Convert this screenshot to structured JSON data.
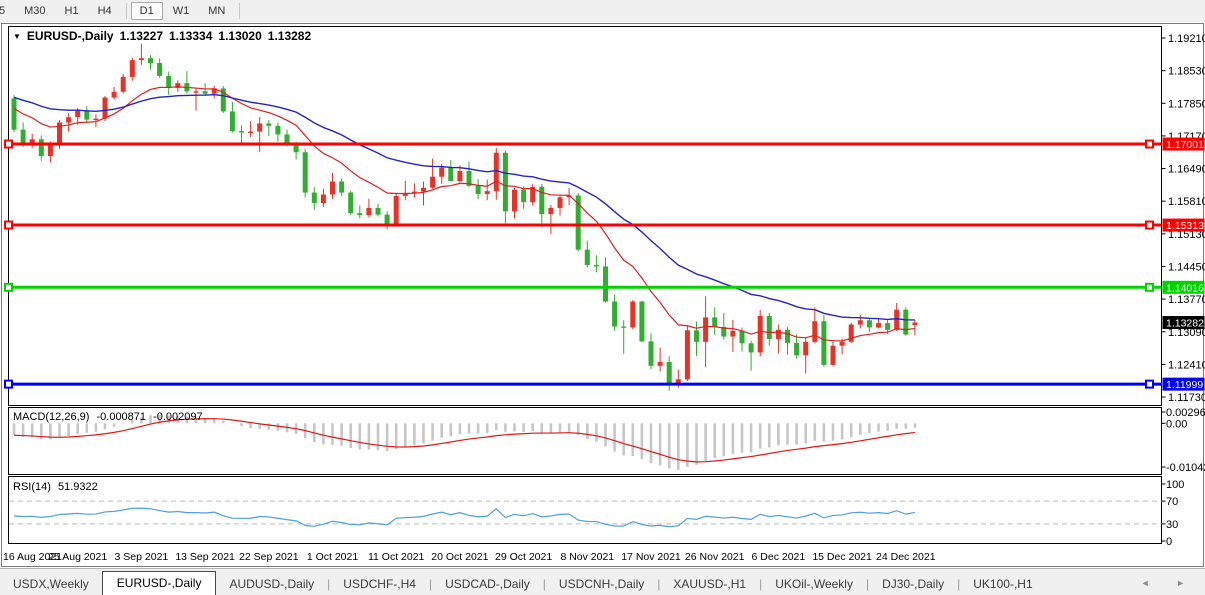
{
  "toolbar": {
    "timeframes": [
      {
        "label": "5",
        "active": false
      },
      {
        "label": "M30",
        "active": false
      },
      {
        "label": "H1",
        "active": false
      },
      {
        "label": "H4",
        "active": false,
        "separator_after": true
      },
      {
        "label": "D1",
        "active": true
      },
      {
        "label": "W1",
        "active": false
      },
      {
        "label": "MN",
        "active": false,
        "separator_after": true
      }
    ]
  },
  "chart_title": {
    "dropdown_icon": "chart-dropdown",
    "symbol": "EURUSD-,Daily",
    "open": "1.13227",
    "high": "1.13334",
    "low": "1.13020",
    "close": "1.13282"
  },
  "price_axis": {
    "ticks": [
      1.1921,
      1.1853,
      1.1785,
      1.1717,
      1.1649,
      1.1581,
      1.1513,
      1.1445,
      1.1377,
      1.1309,
      1.1241,
      1.1173
    ],
    "decimals": 5
  },
  "hlines": [
    {
      "price": 1.17001,
      "label": "1.17001",
      "color": "#FF0000",
      "width": 3
    },
    {
      "price": 1.15313,
      "label": "1.15313",
      "color": "#FF0000",
      "width": 3
    },
    {
      "price": 1.14016,
      "label": "1.14016",
      "color": "#00D300",
      "width": 3
    },
    {
      "price": 1.11999,
      "label": "1.11999",
      "color": "#0000FF",
      "width": 3
    }
  ],
  "current_price": {
    "value": 1.13282,
    "label": "1.13282",
    "bg": "#000000",
    "fg": "#ffffff"
  },
  "macd_panel": {
    "label": "MACD(12,26,9)",
    "value1": "-0.000871",
    "value2": "-0.002097",
    "axis_max_label": "0.002966",
    "axis_zero_label": "0.00",
    "axis_min_label": "-0.01042",
    "axis_max": 0.002966,
    "axis_min": -0.01042
  },
  "rsi_panel": {
    "label": "RSI(14)",
    "value": "51.9322",
    "axis_labels": [
      100,
      70,
      30,
      0
    ],
    "dashed_levels": [
      70,
      30
    ]
  },
  "date_axis": {
    "labels": [
      "16 Aug 2021",
      "25 Aug 2021",
      "3 Sep 2021",
      "13 Sep 2021",
      "22 Sep 2021",
      "1 Oct 2021",
      "11 Oct 2021",
      "20 Oct 2021",
      "29 Oct 2021",
      "8 Nov 2021",
      "17 Nov 2021",
      "26 Nov 2021",
      "6 Dec 2021",
      "15 Dec 2021",
      "24 Dec 2021"
    ]
  },
  "tabs": {
    "items": [
      {
        "label": "USDX,Weekly",
        "active": false
      },
      {
        "label": "EURUSD-,Daily",
        "active": true
      },
      {
        "label": "AUDUSD-,Daily",
        "active": false
      },
      {
        "label": "USDCHF-,H4",
        "active": false
      },
      {
        "label": "USDCAD-,Daily",
        "active": false
      },
      {
        "label": "USDCNH-,Daily",
        "active": false
      },
      {
        "label": "XAUUSD-,H1",
        "active": false
      },
      {
        "label": "UKOil-,Weekly",
        "active": false
      },
      {
        "label": "DJ30-,Daily",
        "active": false
      },
      {
        "label": "UK100-,H1",
        "active": false
      }
    ],
    "nav_left": "◄",
    "nav_right": "►"
  },
  "chart_data": {
    "type": "candlestick",
    "symbol": "EURUSD-",
    "timeframe": "Daily",
    "bull_color": "#E93226",
    "bear_color": "#2FAE2F",
    "candles": [
      [
        1.1795,
        1.1802,
        1.1725,
        1.173
      ],
      [
        1.173,
        1.1745,
        1.1694,
        1.1702
      ],
      [
        1.1702,
        1.1721,
        1.1692,
        1.171
      ],
      [
        1.171,
        1.1718,
        1.1665,
        1.1675
      ],
      [
        1.1675,
        1.1705,
        1.1662,
        1.1697
      ],
      [
        1.1697,
        1.175,
        1.169,
        1.1745
      ],
      [
        1.1745,
        1.1765,
        1.1727,
        1.1756
      ],
      [
        1.1756,
        1.1775,
        1.174,
        1.177
      ],
      [
        1.177,
        1.1779,
        1.1745,
        1.1751
      ],
      [
        1.1751,
        1.1762,
        1.1735,
        1.1753
      ],
      [
        1.1753,
        1.18,
        1.1748,
        1.1797
      ],
      [
        1.1797,
        1.1819,
        1.1793,
        1.1809
      ],
      [
        1.1809,
        1.1846,
        1.1805,
        1.184
      ],
      [
        1.184,
        1.188,
        1.1832,
        1.1875
      ],
      [
        1.1875,
        1.1909,
        1.1865,
        1.1879
      ],
      [
        1.1879,
        1.1885,
        1.1855,
        1.1869
      ],
      [
        1.1869,
        1.1878,
        1.1838,
        1.1842
      ],
      [
        1.1842,
        1.1851,
        1.1802,
        1.1817
      ],
      [
        1.1817,
        1.1833,
        1.1809,
        1.1827
      ],
      [
        1.1827,
        1.1852,
        1.1805,
        1.181
      ],
      [
        1.181,
        1.1818,
        1.177,
        1.181
      ],
      [
        1.181,
        1.1827,
        1.18,
        1.1805
      ],
      [
        1.1805,
        1.1822,
        1.1795,
        1.1816
      ],
      [
        1.1816,
        1.1821,
        1.1765,
        1.1768
      ],
      [
        1.1768,
        1.1788,
        1.1724,
        1.1727
      ],
      [
        1.1727,
        1.1739,
        1.17,
        1.1725
      ],
      [
        1.1725,
        1.1748,
        1.1715,
        1.1726
      ],
      [
        1.1726,
        1.1756,
        1.1684,
        1.1743
      ],
      [
        1.1743,
        1.175,
        1.1717,
        1.1738
      ],
      [
        1.1738,
        1.1745,
        1.1705,
        1.172
      ],
      [
        1.172,
        1.173,
        1.1695,
        1.17
      ],
      [
        1.17,
        1.1705,
        1.1668,
        1.1683
      ],
      [
        1.1683,
        1.169,
        1.1589,
        1.1599
      ],
      [
        1.1599,
        1.161,
        1.1563,
        1.1577
      ],
      [
        1.1577,
        1.1607,
        1.1569,
        1.1595
      ],
      [
        1.1595,
        1.164,
        1.1586,
        1.1622
      ],
      [
        1.1622,
        1.1628,
        1.1592,
        1.1599
      ],
      [
        1.1599,
        1.1602,
        1.1552,
        1.1556
      ],
      [
        1.1556,
        1.1572,
        1.1545,
        1.1552
      ],
      [
        1.1552,
        1.1586,
        1.1547,
        1.1567
      ],
      [
        1.1567,
        1.1576,
        1.1549,
        1.1553
      ],
      [
        1.1553,
        1.156,
        1.1522,
        1.1532
      ],
      [
        1.1532,
        1.1597,
        1.1529,
        1.1592
      ],
      [
        1.1592,
        1.1624,
        1.1583,
        1.1597
      ],
      [
        1.1597,
        1.1618,
        1.1588,
        1.1601
      ],
      [
        1.1601,
        1.1622,
        1.1572,
        1.1609
      ],
      [
        1.1609,
        1.167,
        1.1607,
        1.1632
      ],
      [
        1.1632,
        1.1659,
        1.1617,
        1.1651
      ],
      [
        1.1651,
        1.1667,
        1.1622,
        1.1623
      ],
      [
        1.1623,
        1.1656,
        1.162,
        1.1644
      ],
      [
        1.1644,
        1.1664,
        1.161,
        1.1613
      ],
      [
        1.1613,
        1.1627,
        1.1585,
        1.1596
      ],
      [
        1.1596,
        1.1626,
        1.1583,
        1.1602
      ],
      [
        1.1602,
        1.1692,
        1.1584,
        1.1682
      ],
      [
        1.1682,
        1.1686,
        1.1535,
        1.156
      ],
      [
        1.156,
        1.1609,
        1.1545,
        1.1605
      ],
      [
        1.1605,
        1.1612,
        1.1565,
        1.1579
      ],
      [
        1.1579,
        1.1616,
        1.1572,
        1.1611
      ],
      [
        1.1611,
        1.1617,
        1.1527,
        1.1554
      ],
      [
        1.1554,
        1.1573,
        1.1513,
        1.1567
      ],
      [
        1.1567,
        1.1595,
        1.1551,
        1.1589
      ],
      [
        1.1589,
        1.1609,
        1.1573,
        1.1593
      ],
      [
        1.1593,
        1.1598,
        1.1476,
        1.148
      ],
      [
        1.148,
        1.1499,
        1.1443,
        1.1448
      ],
      [
        1.1448,
        1.1468,
        1.1433,
        1.1445
      ],
      [
        1.1445,
        1.1464,
        1.137,
        1.1372
      ],
      [
        1.1372,
        1.1387,
        1.1311,
        1.132
      ],
      [
        1.132,
        1.1333,
        1.1263,
        1.1318
      ],
      [
        1.1318,
        1.1375,
        1.1314,
        1.1372
      ],
      [
        1.1372,
        1.1374,
        1.1287,
        1.1289
      ],
      [
        1.1289,
        1.1306,
        1.1231,
        1.1238
      ],
      [
        1.1238,
        1.1276,
        1.1226,
        1.1246
      ],
      [
        1.1246,
        1.1258,
        1.1186,
        1.1199
      ],
      [
        1.1199,
        1.123,
        1.1192,
        1.121
      ],
      [
        1.121,
        1.1322,
        1.1206,
        1.1312
      ],
      [
        1.1312,
        1.133,
        1.1259,
        1.1288
      ],
      [
        1.1288,
        1.1383,
        1.1235,
        1.1339
      ],
      [
        1.1339,
        1.136,
        1.1302,
        1.1319
      ],
      [
        1.1319,
        1.1348,
        1.1293,
        1.1299
      ],
      [
        1.1299,
        1.1334,
        1.1267,
        1.1311
      ],
      [
        1.1311,
        1.1318,
        1.1268,
        1.1285
      ],
      [
        1.1285,
        1.129,
        1.1228,
        1.1266
      ],
      [
        1.1266,
        1.1355,
        1.1258,
        1.1342
      ],
      [
        1.1342,
        1.1348,
        1.128,
        1.1294
      ],
      [
        1.1294,
        1.1324,
        1.1264,
        1.1313
      ],
      [
        1.1313,
        1.1319,
        1.1261,
        1.1286
      ],
      [
        1.1286,
        1.1304,
        1.1253,
        1.126
      ],
      [
        1.126,
        1.1298,
        1.1222,
        1.1288
      ],
      [
        1.1288,
        1.136,
        1.1285,
        1.1331
      ],
      [
        1.1331,
        1.1344,
        1.1236,
        1.124
      ],
      [
        1.124,
        1.1288,
        1.1237,
        1.128
      ],
      [
        1.128,
        1.1295,
        1.1262,
        1.1288
      ],
      [
        1.1288,
        1.1328,
        1.1285,
        1.1324
      ],
      [
        1.1324,
        1.1344,
        1.1316,
        1.1333
      ],
      [
        1.1333,
        1.1338,
        1.1308,
        1.1318
      ],
      [
        1.1318,
        1.1336,
        1.1316,
        1.1327
      ],
      [
        1.1327,
        1.1334,
        1.1304,
        1.1313
      ],
      [
        1.1313,
        1.1369,
        1.1311,
        1.1355
      ],
      [
        1.1355,
        1.136,
        1.1301,
        1.1303
      ],
      [
        1.13227,
        1.13334,
        1.1302,
        1.13282
      ]
    ],
    "indicators": {
      "ma_fast": {
        "type": "EMA",
        "period": 12,
        "color": "#DE2020",
        "init": 1.1782
      },
      "ma_slow": {
        "type": "EMA",
        "period": 30,
        "color": "#2424C4",
        "init": 1.1802
      },
      "macd": {
        "fast": 12,
        "slow": 26,
        "signal": 9,
        "hist_color": "#C6C6C6",
        "signal_color": "#E01818",
        "init_fast": 1.1775,
        "init_slow": 1.18
      },
      "rsi": {
        "period": 14,
        "color": "#4D9FDB",
        "init_avg_gain": 0.003,
        "init_avg_loss": 0.0038
      }
    }
  }
}
